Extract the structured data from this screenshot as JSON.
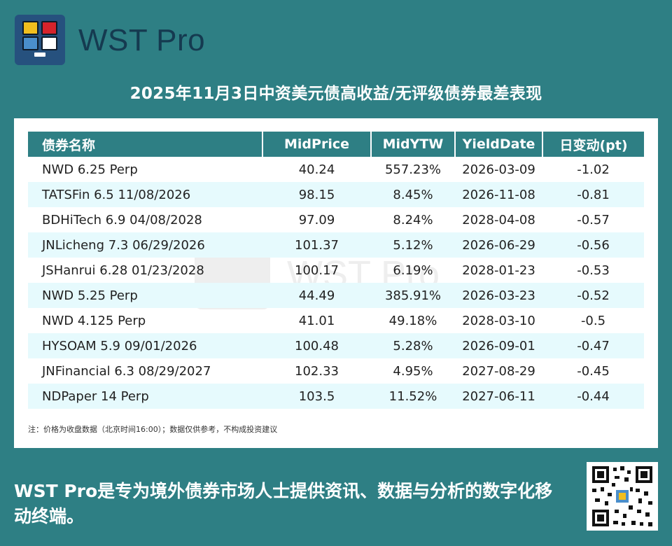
{
  "brand": {
    "name": "WST Pro"
  },
  "headline": "2025年11月3日中资美元债高收益/无评级债券最差表现",
  "table": {
    "columns": [
      "债券名称",
      "MidPrice",
      "MidYTW",
      "YieldDate",
      "日变动(pt)"
    ],
    "rows": [
      [
        "NWD 6.25 Perp",
        "40.24",
        "557.23%",
        "2026-03-09",
        "-1.02"
      ],
      [
        "TATSFin 6.5 11/08/2026",
        "98.15",
        "8.45%",
        "2026-11-08",
        "-0.81"
      ],
      [
        "BDHiTech 6.9 04/08/2028",
        "97.09",
        "8.24%",
        "2028-04-08",
        "-0.57"
      ],
      [
        "JNLicheng 7.3 06/29/2026",
        "101.37",
        "5.12%",
        "2026-06-29",
        "-0.56"
      ],
      [
        "JSHanrui 6.28 01/23/2028",
        "100.17",
        "6.19%",
        "2028-01-23",
        "-0.53"
      ],
      [
        "NWD 5.25 Perp",
        "44.49",
        "385.91%",
        "2026-03-23",
        "-0.52"
      ],
      [
        "NWD 4.125 Perp",
        "41.01",
        "49.18%",
        "2028-03-10",
        "-0.5"
      ],
      [
        "HYSOAM 5.9 09/01/2026",
        "100.48",
        "5.28%",
        "2026-09-01",
        "-0.47"
      ],
      [
        "JNFinancial 6.3 08/29/2027",
        "102.33",
        "4.95%",
        "2027-08-29",
        "-0.45"
      ],
      [
        "NDPaper 14 Perp",
        "103.5",
        "11.52%",
        "2027-06-11",
        "-0.44"
      ]
    ]
  },
  "note": "注：价格为收盘数据（北京时间16:00）；数据仅供参考，不构成投资建议",
  "footer": "WST Pro是专为境外债券市场人士提供资讯、数据与分析的数字化移动终端。",
  "colors": {
    "background": "#2e7f84",
    "header_bg": "#2e7f84",
    "alt_row": "#e6fafd",
    "logo_bg": "#26517e"
  },
  "icons": {
    "logo": "wst-logo-icon",
    "qr": "qr-code-icon"
  }
}
